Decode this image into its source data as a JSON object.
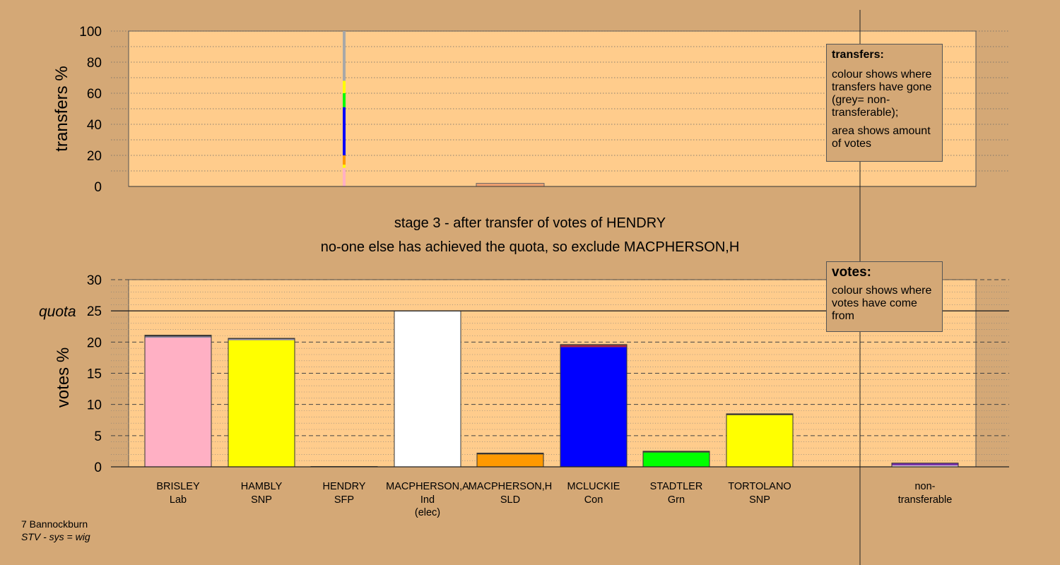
{
  "footer": {
    "area": "7 Bannockburn",
    "system": "STV - sys = wig"
  },
  "titles": {
    "stage": "stage 3 - after transfer of votes of HENDRY",
    "action": "no-one else has achieved the quota, so exclude MACPHERSON,H"
  },
  "legend_transfers": {
    "title": "transfers:",
    "line1": "colour shows where transfers have gone (grey= non-transferable);",
    "line2": "area shows amount of votes"
  },
  "legend_votes": {
    "title": "votes:",
    "line1": "colour shows where votes have come from"
  },
  "chart_data": [
    {
      "type": "bar",
      "title": "transfers",
      "ylabel": "transfers %",
      "ylim": [
        0,
        100
      ],
      "yticks": [
        0,
        20,
        40,
        60,
        80,
        100
      ],
      "grid": true,
      "transfer_column": {
        "from": "HENDRY",
        "segments": [
          {
            "party_colour": "#ffb0c4",
            "value": 12
          },
          {
            "party_colour": "#ffff00",
            "value": 2
          },
          {
            "party_colour": "#ff9900",
            "value": 6
          },
          {
            "party_colour": "#0000ff",
            "value": 31
          },
          {
            "party_colour": "#00ff00",
            "value": 9
          },
          {
            "party_colour": "#ffff00",
            "value": 8
          },
          {
            "party_colour": "#a8a8a8",
            "value": 32
          }
        ]
      },
      "transfer_area": {
        "start_col": 4,
        "end_col": 4,
        "value": 2
      }
    },
    {
      "type": "bar",
      "title": "votes",
      "ylabel": "votes %",
      "ylim": [
        0,
        30
      ],
      "yticks": [
        0,
        5,
        10,
        15,
        20,
        25,
        30
      ],
      "quota": 25,
      "quota_label": "quota",
      "grid": true,
      "categories": [
        {
          "name": "BRISLEY",
          "party": "Lab",
          "extra": ""
        },
        {
          "name": "HAMBLY",
          "party": "SNP",
          "extra": ""
        },
        {
          "name": "HENDRY",
          "party": "SFP",
          "extra": ""
        },
        {
          "name": "MACPHERSON,A",
          "party": "Ind",
          "extra": "(elec)"
        },
        {
          "name": "MACPHERSON,H",
          "party": "SLD",
          "extra": ""
        },
        {
          "name": "MCLUCKIE",
          "party": "Con",
          "extra": ""
        },
        {
          "name": "STADTLER",
          "party": "Grn",
          "extra": ""
        },
        {
          "name": "TORTOLANO",
          "party": "SNP",
          "extra": ""
        },
        {
          "name": "non-",
          "party": "transferable",
          "extra": ""
        }
      ],
      "bars": [
        {
          "col": 0,
          "segments": [
            {
              "colour": "#ffb0c4",
              "value": 20.7
            },
            {
              "colour": "#8888aa",
              "value": 0.2
            },
            {
              "colour": "#333333",
              "value": 0.2
            }
          ]
        },
        {
          "col": 1,
          "segments": [
            {
              "colour": "#ffff00",
              "value": 20.3
            },
            {
              "colour": "#8888aa",
              "value": 0.2
            },
            {
              "colour": "#333333",
              "value": 0.1
            }
          ]
        },
        {
          "col": 2,
          "segments": [
            {
              "colour": "#333333",
              "value": 0.05
            }
          ]
        },
        {
          "col": 3,
          "segments": [
            {
              "colour": "#ffffff",
              "value": 25.0
            }
          ]
        },
        {
          "col": 4,
          "segments": [
            {
              "colour": "#ff9900",
              "value": 2.0
            },
            {
              "colour": "#333333",
              "value": 0.2
            }
          ]
        },
        {
          "col": 5,
          "segments": [
            {
              "colour": "#0000ff",
              "value": 19.2
            },
            {
              "colour": "#aa2244",
              "value": 0.3
            },
            {
              "colour": "#333333",
              "value": 0.1
            }
          ]
        },
        {
          "col": 6,
          "segments": [
            {
              "colour": "#00ff00",
              "value": 2.3
            },
            {
              "colour": "#333333",
              "value": 0.2
            }
          ]
        },
        {
          "col": 7,
          "segments": [
            {
              "colour": "#ffff00",
              "value": 8.3
            },
            {
              "colour": "#333333",
              "value": 0.2
            }
          ]
        },
        {
          "col": 8,
          "segments": [
            {
              "colour": "#ffffff",
              "value": 0.2
            },
            {
              "colour": "#7733aa",
              "value": 0.4
            }
          ]
        }
      ]
    }
  ]
}
